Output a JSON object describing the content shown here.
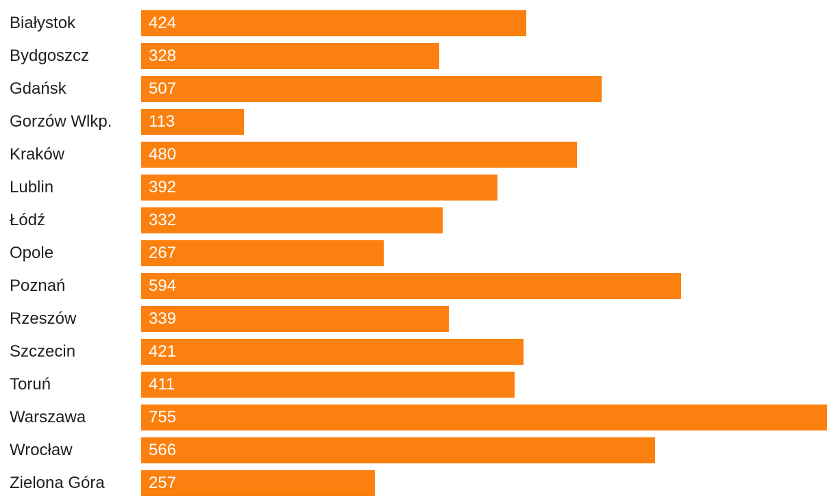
{
  "chart_data": {
    "type": "bar",
    "orientation": "horizontal",
    "title": "",
    "xlabel": "",
    "ylabel": "",
    "categories": [
      "Białystok",
      "Bydgoszcz",
      "Gdańsk",
      "Gorzów Wlkp.",
      "Kraków",
      "Lublin",
      "Łódź",
      "Opole",
      "Poznań",
      "Rzeszów",
      "Szczecin",
      "Toruń",
      "Warszawa",
      "Wrocław",
      "Zielona Góra"
    ],
    "values": [
      424,
      328,
      507,
      113,
      480,
      392,
      332,
      267,
      594,
      339,
      421,
      411,
      755,
      566,
      257
    ],
    "xlim": [
      0,
      755
    ],
    "grid": false,
    "legend": false,
    "value_labels": "inside-left",
    "bar_color": "#fb800f",
    "value_label_color": "#ffffff",
    "category_label_color": "#1f1f1f",
    "background_color": "#ffffff"
  }
}
